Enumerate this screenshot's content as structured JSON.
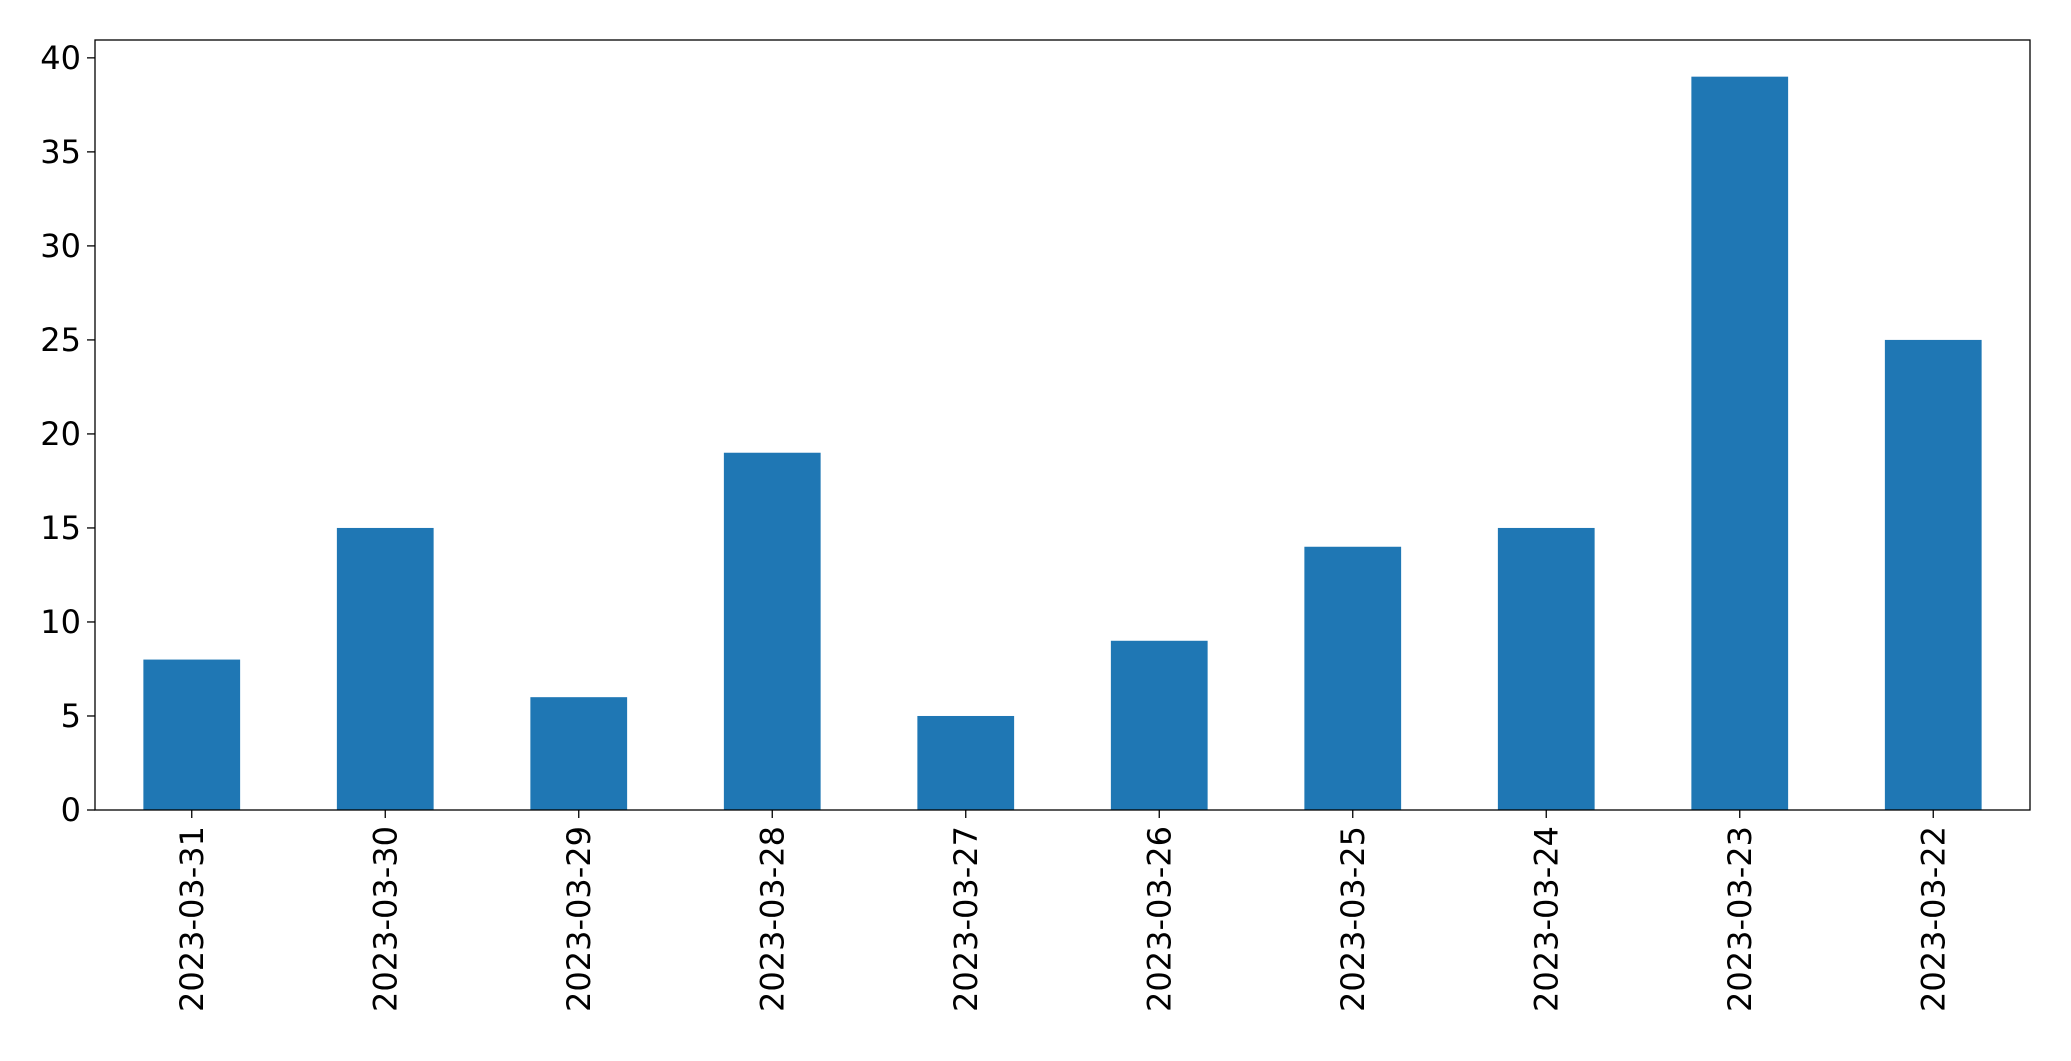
{
  "chart_data": {
    "type": "bar",
    "categories": [
      "2023-03-31",
      "2023-03-30",
      "2023-03-29",
      "2023-03-28",
      "2023-03-27",
      "2023-03-26",
      "2023-03-25",
      "2023-03-24",
      "2023-03-23",
      "2023-03-22"
    ],
    "values": [
      8,
      15,
      6,
      19,
      5,
      9,
      14,
      15,
      39,
      25
    ],
    "color": "#1f77b4",
    "ylim": [
      0,
      40.95
    ],
    "yticks": [
      0,
      5,
      10,
      15,
      20,
      25,
      30,
      35,
      40
    ],
    "grid": false
  }
}
